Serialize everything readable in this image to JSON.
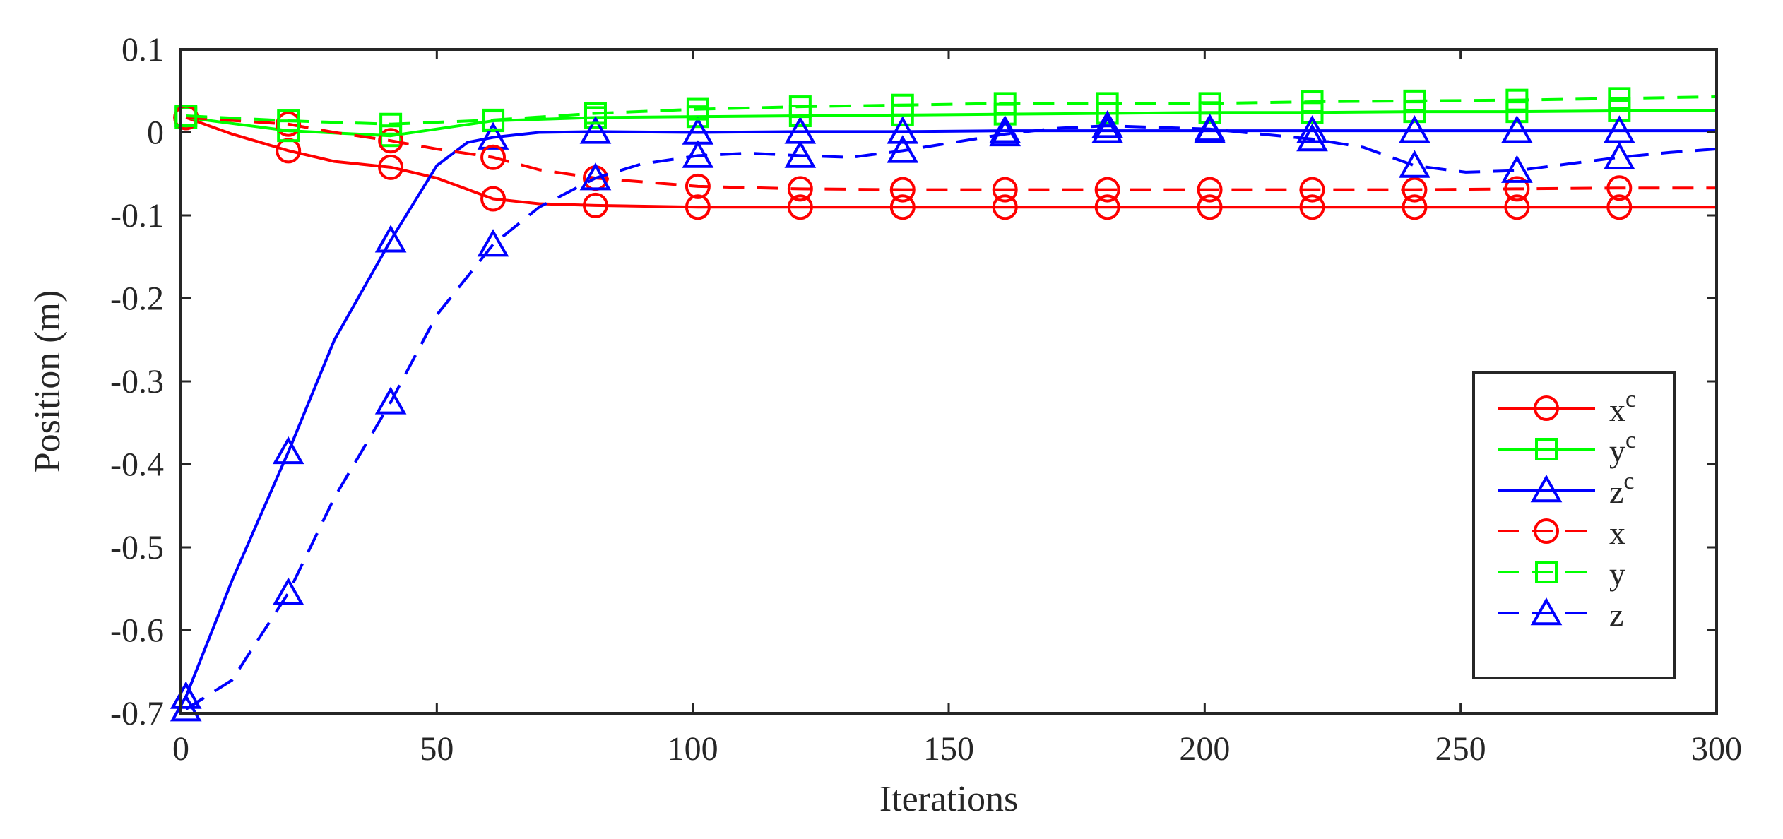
{
  "chart_data": {
    "type": "line",
    "title": "",
    "xlabel": "Iterations",
    "ylabel": "Position (m)",
    "xlim": [
      0,
      300
    ],
    "ylim": [
      -0.7,
      0.1
    ],
    "xticks": [
      0,
      50,
      100,
      150,
      200,
      250,
      300
    ],
    "yticks": [
      -0.7,
      -0.6,
      -0.5,
      -0.4,
      -0.3,
      -0.2,
      -0.1,
      0,
      0.1
    ],
    "xtick_labels": [
      "0",
      "50",
      "100",
      "150",
      "200",
      "250",
      "300"
    ],
    "ytick_labels": [
      "-0.7",
      "-0.6",
      "-0.5",
      "-0.4",
      "-0.3",
      "-0.2",
      "-0.1",
      "0",
      "0.1"
    ],
    "grid": false,
    "legend_position": "lower-right",
    "series": [
      {
        "name": "x",
        "superscript": "c",
        "color": "#ff0000",
        "line_style": "solid",
        "marker": "circle",
        "x": [
          1,
          10,
          21,
          30,
          41,
          50,
          61,
          70,
          81,
          101,
          121,
          141,
          161,
          181,
          201,
          221,
          241,
          261,
          281,
          300
        ],
        "y": [
          0.018,
          -0.002,
          -0.022,
          -0.035,
          -0.042,
          -0.055,
          -0.08,
          -0.086,
          -0.088,
          -0.09,
          -0.09,
          -0.09,
          -0.09,
          -0.09,
          -0.09,
          -0.09,
          -0.09,
          -0.09,
          -0.09,
          -0.09
        ],
        "marker_x": [
          1,
          21,
          41,
          61,
          81,
          101,
          121,
          141,
          161,
          181,
          201,
          221,
          241,
          261,
          281
        ]
      },
      {
        "name": "y",
        "superscript": "c",
        "color": "#00ff00",
        "line_style": "solid",
        "marker": "square",
        "x": [
          1,
          21,
          41,
          61,
          81,
          101,
          121,
          141,
          161,
          181,
          201,
          221,
          241,
          261,
          281,
          300
        ],
        "y": [
          0.018,
          0.002,
          -0.004,
          0.014,
          0.018,
          0.019,
          0.02,
          0.021,
          0.022,
          0.023,
          0.024,
          0.024,
          0.025,
          0.025,
          0.026,
          0.026
        ],
        "marker_x": [
          1,
          21,
          41,
          61,
          81,
          101,
          121,
          141,
          161,
          181,
          201,
          221,
          241,
          261,
          281
        ]
      },
      {
        "name": "z",
        "superscript": "c",
        "color": "#0000ff",
        "line_style": "solid",
        "marker": "triangle",
        "x": [
          1,
          10,
          21,
          30,
          41,
          50,
          56,
          61,
          70,
          81,
          101,
          121,
          141,
          161,
          181,
          201,
          221,
          241,
          261,
          281,
          300
        ],
        "y": [
          -0.68,
          -0.54,
          -0.385,
          -0.25,
          -0.13,
          -0.04,
          -0.012,
          -0.006,
          0.0,
          0.001,
          0.0,
          0.001,
          0.001,
          0.002,
          0.002,
          0.002,
          0.002,
          0.002,
          0.002,
          0.002,
          0.002
        ],
        "marker_x": [
          1,
          21,
          41,
          61,
          81,
          101,
          121,
          141,
          161,
          181,
          201,
          221,
          241,
          261,
          281
        ]
      },
      {
        "name": "x",
        "superscript": "",
        "color": "#ff0000",
        "line_style": "dashed",
        "marker": "circle",
        "x": [
          1,
          21,
          30,
          41,
          50,
          61,
          70,
          81,
          101,
          121,
          141,
          161,
          181,
          201,
          221,
          241,
          261,
          281,
          300
        ],
        "y": [
          0.018,
          0.01,
          0.0,
          -0.01,
          -0.02,
          -0.03,
          -0.045,
          -0.055,
          -0.065,
          -0.068,
          -0.069,
          -0.069,
          -0.069,
          -0.069,
          -0.069,
          -0.069,
          -0.068,
          -0.067,
          -0.067
        ],
        "marker_x": [
          1,
          21,
          41,
          61,
          81,
          101,
          121,
          141,
          161,
          181,
          201,
          221,
          241,
          261,
          281
        ]
      },
      {
        "name": "y",
        "superscript": "",
        "color": "#00ff00",
        "line_style": "dashed",
        "marker": "square",
        "x": [
          1,
          21,
          41,
          61,
          81,
          101,
          121,
          141,
          161,
          181,
          201,
          221,
          241,
          261,
          281,
          300
        ],
        "y": [
          0.02,
          0.014,
          0.01,
          0.015,
          0.023,
          0.028,
          0.031,
          0.033,
          0.035,
          0.035,
          0.035,
          0.037,
          0.038,
          0.039,
          0.041,
          0.043
        ],
        "marker_x": [
          1,
          21,
          41,
          61,
          81,
          101,
          121,
          141,
          161,
          181,
          201,
          221,
          241,
          261,
          281
        ]
      },
      {
        "name": "z",
        "superscript": "",
        "color": "#0000ff",
        "line_style": "dashed",
        "marker": "triangle",
        "x": [
          1,
          10,
          21,
          30,
          41,
          50,
          61,
          70,
          81,
          90,
          101,
          111,
          121,
          131,
          141,
          151,
          161,
          171,
          181,
          191,
          201,
          211,
          221,
          231,
          241,
          251,
          261,
          271,
          281,
          291,
          300
        ],
        "y": [
          -0.695,
          -0.66,
          -0.555,
          -0.44,
          -0.325,
          -0.22,
          -0.135,
          -0.09,
          -0.055,
          -0.038,
          -0.028,
          -0.025,
          -0.028,
          -0.03,
          -0.022,
          -0.012,
          -0.002,
          0.005,
          0.008,
          0.006,
          0.004,
          -0.002,
          -0.008,
          -0.018,
          -0.04,
          -0.048,
          -0.046,
          -0.038,
          -0.03,
          -0.024,
          -0.02
        ],
        "marker_x": [
          1,
          21,
          41,
          61,
          81,
          101,
          121,
          141,
          161,
          181,
          201,
          221,
          241,
          261,
          281
        ]
      }
    ]
  }
}
